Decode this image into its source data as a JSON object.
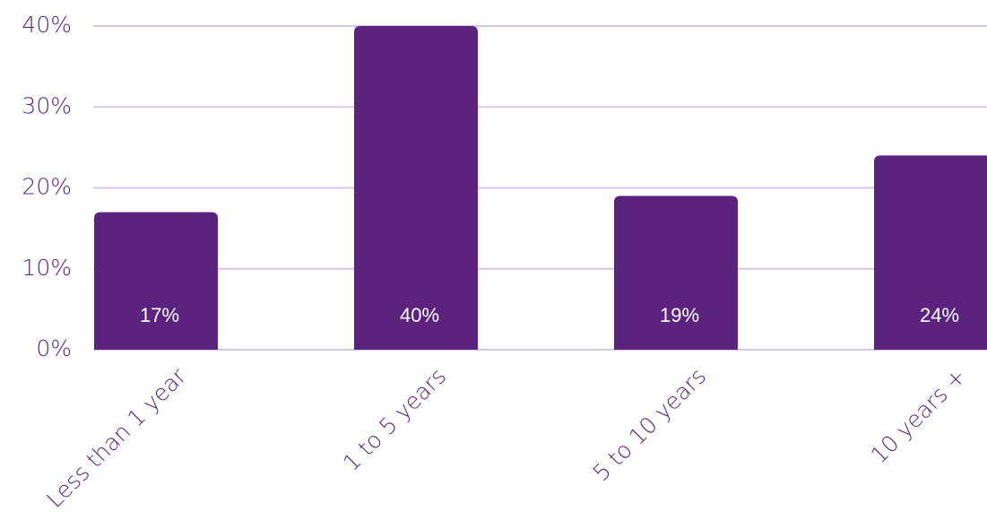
{
  "chart_data": {
    "type": "bar",
    "categories": [
      "Less than 1 year",
      "1 to 5 years",
      "5 to 10 years",
      "10 years +"
    ],
    "values": [
      17,
      40,
      19,
      24
    ],
    "data_labels": [
      "17%",
      "40%",
      "19%",
      "24%"
    ],
    "yticks": [
      0,
      10,
      20,
      30,
      40
    ],
    "ytick_labels": [
      "0%",
      "10%",
      "20%",
      "30%",
      "40%"
    ],
    "ylim": [
      0,
      40
    ],
    "grid": true,
    "legend": "none"
  },
  "colors": {
    "bar": "#5b237d",
    "grid": "#d6c7e2",
    "axis_text": "#5b237d",
    "data_label": "#ffffff"
  }
}
